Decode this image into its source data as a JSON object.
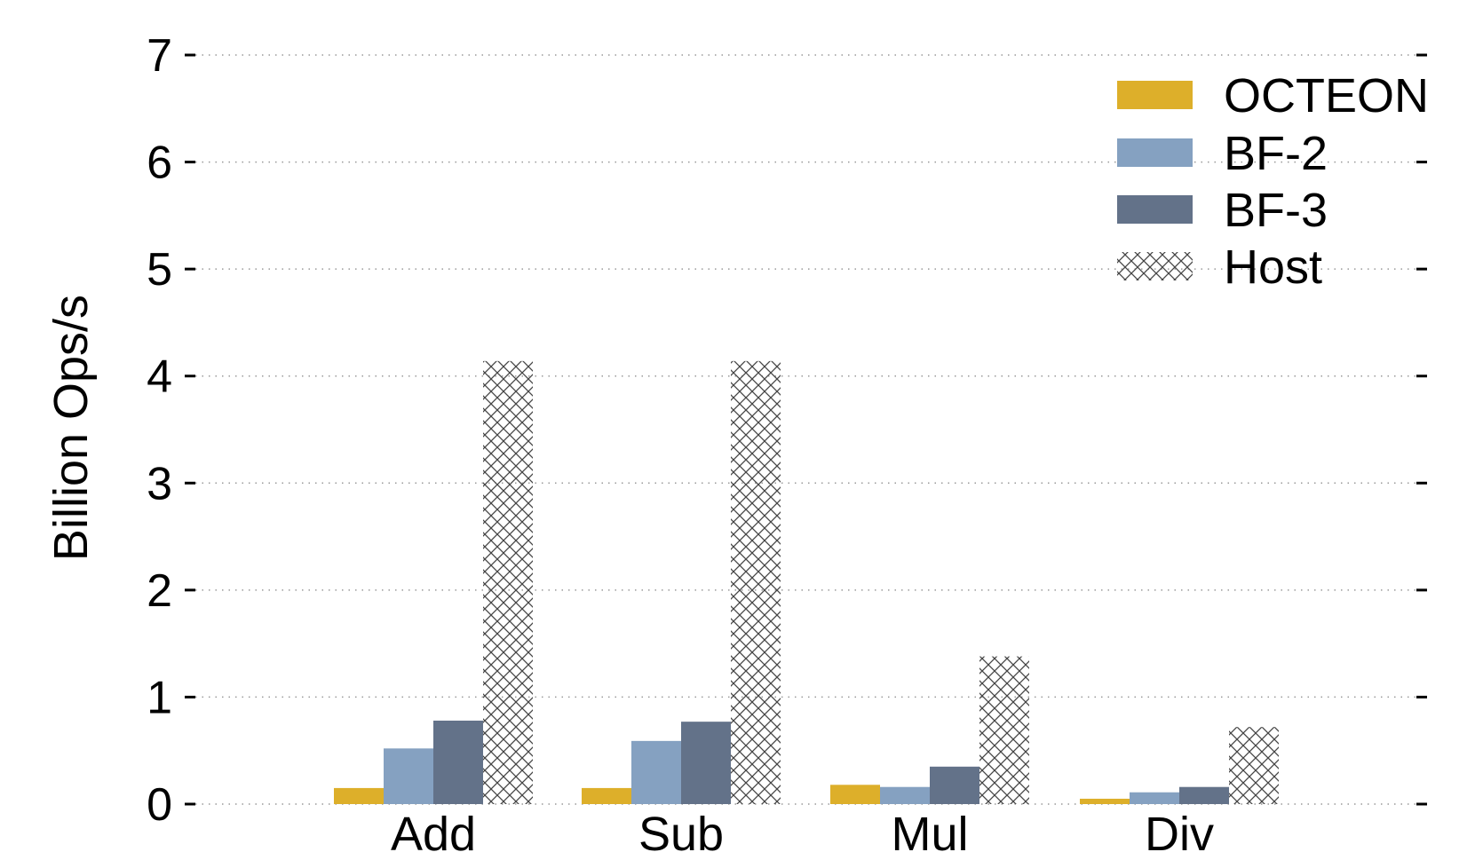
{
  "chart_data": {
    "type": "bar",
    "title": "",
    "xlabel": "",
    "ylabel": "Billion Ops/s",
    "ylim": [
      0,
      7
    ],
    "yticks": [
      0,
      1,
      2,
      3,
      4,
      5,
      6,
      7
    ],
    "grid": "horizontal dotted",
    "legend_placement": "top-right",
    "categories": [
      "Add",
      "Sub",
      "Mul",
      "Div"
    ],
    "series": [
      {
        "name": "OCTEON",
        "color": "#DDAF2A",
        "values": [
          0.15,
          0.15,
          0.18,
          0.05
        ]
      },
      {
        "name": "BF-2",
        "color": "#85A1C1",
        "values": [
          0.52,
          0.59,
          0.16,
          0.11
        ]
      },
      {
        "name": "BF-3",
        "color": "#637289",
        "values": [
          0.78,
          0.77,
          0.35,
          0.16
        ]
      },
      {
        "name": "Host",
        "color": "hatched",
        "values": [
          4.14,
          4.14,
          1.38,
          0.72
        ]
      }
    ]
  }
}
